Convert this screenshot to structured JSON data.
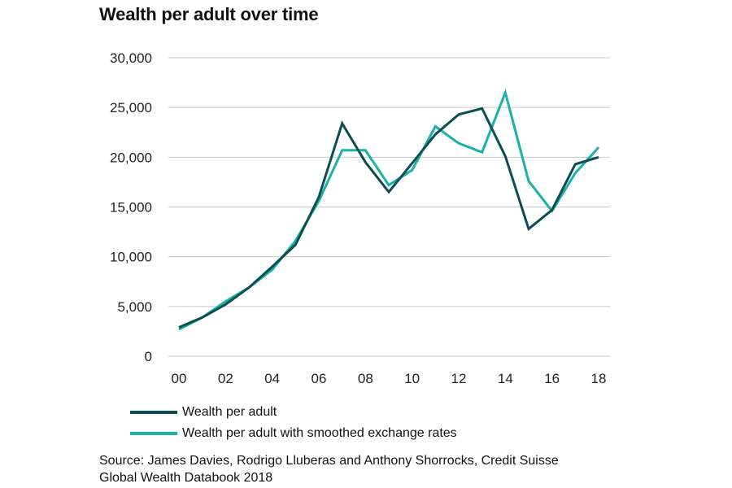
{
  "title": "Wealth per adult over time",
  "legend": {
    "series1": "Wealth per adult",
    "series2": "Wealth per adult with smoothed exchange rates"
  },
  "source": {
    "line1": "Source: James Davies, Rodrigo Lluberas and Anthony Shorrocks, Credit Suisse",
    "line2": "Global Wealth Databook 2018"
  },
  "colors": {
    "series1": "#0b4d52",
    "series2": "#19b1a8",
    "grid": "#c8c8c8"
  },
  "chart_data": {
    "type": "line",
    "title": "Wealth per adult over time",
    "xlabel": "",
    "ylabel": "",
    "x": [
      0,
      1,
      2,
      3,
      4,
      5,
      6,
      7,
      8,
      9,
      10,
      11,
      12,
      13,
      14,
      15,
      16,
      17,
      18
    ],
    "x_tick_labels": [
      "00",
      "02",
      "04",
      "06",
      "08",
      "10",
      "12",
      "14",
      "16",
      "18"
    ],
    "y_tick_labels": [
      "0",
      "5,000",
      "10,000",
      "15,000",
      "20,000",
      "25,000",
      "30,000"
    ],
    "ylim": [
      0,
      30000
    ],
    "xlim": [
      0,
      18
    ],
    "grid": true,
    "legend_position": "bottom",
    "series": [
      {
        "name": "Wealth per adult",
        "color": "#0b4d52",
        "values": [
          2900,
          3900,
          5200,
          6900,
          9000,
          11200,
          16000,
          23400,
          19500,
          16500,
          19400,
          22300,
          24300,
          24900,
          20100,
          12800,
          14700,
          19300,
          20000
        ]
      },
      {
        "name": "Wealth per adult with smoothed exchange rates",
        "color": "#19b1a8",
        "values": [
          2700,
          3900,
          5500,
          6900,
          8700,
          11600,
          15600,
          20700,
          20700,
          17200,
          18700,
          23100,
          21400,
          20500,
          26500,
          17600,
          14600,
          18400,
          21000
        ]
      }
    ]
  }
}
